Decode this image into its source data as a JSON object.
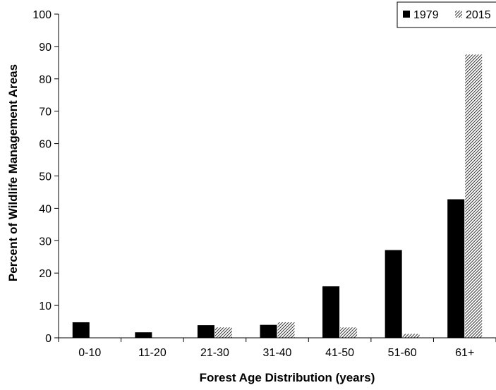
{
  "chart_data": {
    "type": "bar",
    "title": "",
    "xlabel": "Forest Age Distribution (years)",
    "ylabel": "Percent of Wildlife Management Areas",
    "categories": [
      "0-10",
      "11-20",
      "21-30",
      "31-40",
      "41-50",
      "51-60",
      "61+"
    ],
    "series": [
      {
        "name": "1979",
        "values": [
          4.8,
          1.7,
          3.9,
          4.0,
          15.9,
          27.1,
          42.8
        ]
      },
      {
        "name": "2015",
        "values": [
          0.0,
          0.0,
          3.2,
          4.8,
          3.2,
          1.2,
          87.5
        ]
      }
    ],
    "ylim": [
      0,
      100
    ],
    "yticks": [
      0,
      10,
      20,
      30,
      40,
      50,
      60,
      70,
      80,
      90,
      100
    ],
    "grid": false,
    "legend": {
      "position": "top-right",
      "entries": [
        "1979",
        "2015"
      ]
    },
    "colors": {
      "1979": "#000000",
      "2015_pattern": "diagonal-hatch"
    }
  }
}
